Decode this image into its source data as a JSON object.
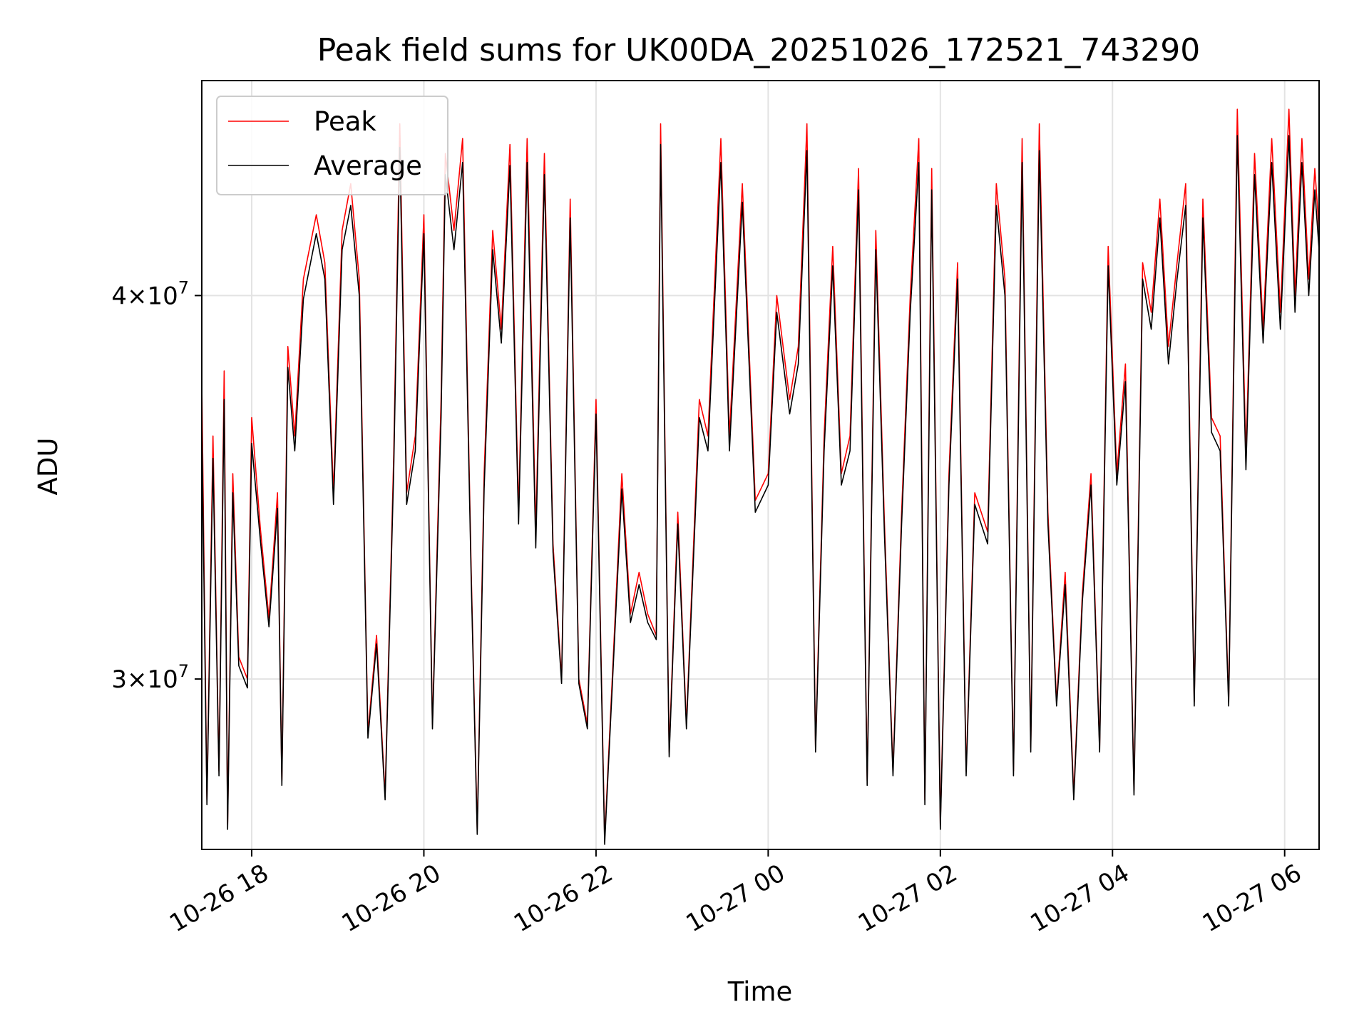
{
  "chart_data": {
    "type": "line",
    "title": "Peak field sums for UK00DA_20251026_172521_743290",
    "xlabel": "Time",
    "ylabel": "ADU",
    "x_range_hours": [
      17.42,
      30.4
    ],
    "ylim": [
      26400000,
      47000000
    ],
    "y_scale": "log",
    "grid": true,
    "legend_position": "top-left",
    "x_ticks": [
      {
        "hour": 18,
        "label": "10-26 18"
      },
      {
        "hour": 20,
        "label": "10-26 20"
      },
      {
        "hour": 22,
        "label": "10-26 22"
      },
      {
        "hour": 24,
        "label": "10-27 00"
      },
      {
        "hour": 26,
        "label": "10-27 02"
      },
      {
        "hour": 28,
        "label": "10-27 04"
      },
      {
        "hour": 30,
        "label": "10-27 06"
      }
    ],
    "y_ticks": [
      {
        "value": 30000000,
        "base": "3",
        "exp": "7"
      },
      {
        "value": 40000000,
        "base": "4",
        "exp": "7"
      }
    ],
    "series": [
      {
        "name": "Peak",
        "color": "#ff0000",
        "points": [
          [
            17.42,
            37500000
          ],
          [
            17.48,
            27400000
          ],
          [
            17.55,
            36000000
          ],
          [
            17.62,
            28000000
          ],
          [
            17.68,
            37800000
          ],
          [
            17.72,
            26900000
          ],
          [
            17.78,
            35000000
          ],
          [
            17.85,
            30500000
          ],
          [
            17.95,
            30000000
          ],
          [
            18.0,
            36500000
          ],
          [
            18.1,
            33600000
          ],
          [
            18.2,
            31400000
          ],
          [
            18.3,
            34500000
          ],
          [
            18.35,
            27800000
          ],
          [
            18.42,
            38500000
          ],
          [
            18.5,
            36000000
          ],
          [
            18.6,
            40500000
          ],
          [
            18.75,
            42500000
          ],
          [
            18.85,
            41000000
          ],
          [
            18.95,
            34500000
          ],
          [
            19.05,
            42000000
          ],
          [
            19.15,
            43500000
          ],
          [
            19.25,
            40500000
          ],
          [
            19.35,
            28800000
          ],
          [
            19.45,
            31000000
          ],
          [
            19.55,
            27500000
          ],
          [
            19.65,
            35500000
          ],
          [
            19.72,
            45500000
          ],
          [
            19.8,
            34500000
          ],
          [
            19.9,
            36000000
          ],
          [
            20.0,
            42500000
          ],
          [
            20.1,
            29000000
          ],
          [
            20.2,
            37000000
          ],
          [
            20.25,
            44500000
          ],
          [
            20.35,
            42000000
          ],
          [
            20.45,
            45000000
          ],
          [
            20.55,
            32500000
          ],
          [
            20.62,
            26800000
          ],
          [
            20.7,
            35000000
          ],
          [
            20.8,
            42000000
          ],
          [
            20.9,
            39000000
          ],
          [
            21.0,
            44800000
          ],
          [
            21.1,
            34000000
          ],
          [
            21.2,
            45000000
          ],
          [
            21.3,
            33500000
          ],
          [
            21.4,
            44500000
          ],
          [
            21.5,
            33200000
          ],
          [
            21.6,
            30000000
          ],
          [
            21.7,
            43000000
          ],
          [
            21.8,
            30000000
          ],
          [
            21.9,
            29000000
          ],
          [
            22.0,
            37000000
          ],
          [
            22.1,
            26600000
          ],
          [
            22.2,
            30500000
          ],
          [
            22.3,
            35000000
          ],
          [
            22.4,
            31500000
          ],
          [
            22.5,
            32500000
          ],
          [
            22.6,
            31500000
          ],
          [
            22.7,
            31000000
          ],
          [
            22.75,
            45500000
          ],
          [
            22.85,
            28400000
          ],
          [
            22.95,
            34000000
          ],
          [
            23.05,
            29000000
          ],
          [
            23.2,
            37000000
          ],
          [
            23.3,
            36000000
          ],
          [
            23.45,
            45000000
          ],
          [
            23.55,
            36000000
          ],
          [
            23.7,
            43500000
          ],
          [
            23.85,
            34300000
          ],
          [
            24.0,
            35000000
          ],
          [
            24.1,
            40000000
          ],
          [
            24.25,
            37000000
          ],
          [
            24.35,
            38500000
          ],
          [
            24.45,
            45500000
          ],
          [
            24.55,
            28500000
          ],
          [
            24.65,
            36000000
          ],
          [
            24.75,
            41500000
          ],
          [
            24.85,
            35000000
          ],
          [
            24.95,
            36000000
          ],
          [
            25.05,
            44000000
          ],
          [
            25.15,
            27800000
          ],
          [
            25.25,
            42000000
          ],
          [
            25.35,
            33800000
          ],
          [
            25.45,
            28000000
          ],
          [
            25.55,
            34000000
          ],
          [
            25.65,
            40000000
          ],
          [
            25.75,
            45000000
          ],
          [
            25.82,
            27400000
          ],
          [
            25.9,
            44000000
          ],
          [
            26.0,
            26900000
          ],
          [
            26.1,
            35000000
          ],
          [
            26.2,
            41000000
          ],
          [
            26.3,
            28000000
          ],
          [
            26.4,
            34500000
          ],
          [
            26.55,
            33500000
          ],
          [
            26.65,
            43500000
          ],
          [
            26.75,
            40500000
          ],
          [
            26.85,
            28000000
          ],
          [
            26.95,
            45000000
          ],
          [
            27.05,
            28500000
          ],
          [
            27.15,
            45500000
          ],
          [
            27.25,
            34000000
          ],
          [
            27.35,
            29500000
          ],
          [
            27.45,
            32500000
          ],
          [
            27.55,
            27500000
          ],
          [
            27.65,
            32000000
          ],
          [
            27.75,
            35000000
          ],
          [
            27.85,
            28500000
          ],
          [
            27.95,
            41500000
          ],
          [
            28.05,
            35000000
          ],
          [
            28.15,
            38000000
          ],
          [
            28.25,
            27600000
          ],
          [
            28.35,
            41000000
          ],
          [
            28.45,
            39500000
          ],
          [
            28.55,
            43000000
          ],
          [
            28.65,
            38500000
          ],
          [
            28.75,
            41000000
          ],
          [
            28.85,
            43500000
          ],
          [
            28.95,
            29500000
          ],
          [
            29.05,
            43000000
          ],
          [
            29.15,
            36500000
          ],
          [
            29.25,
            36000000
          ],
          [
            29.35,
            29500000
          ],
          [
            29.45,
            46000000
          ],
          [
            29.55,
            35500000
          ],
          [
            29.65,
            44500000
          ],
          [
            29.75,
            39000000
          ],
          [
            29.85,
            45000000
          ],
          [
            29.95,
            39500000
          ],
          [
            30.05,
            46000000
          ],
          [
            30.12,
            40000000
          ],
          [
            30.2,
            45000000
          ],
          [
            30.28,
            40500000
          ],
          [
            30.35,
            44000000
          ],
          [
            30.4,
            42000000
          ]
        ]
      },
      {
        "name": "Average",
        "color": "#000000",
        "points": [
          [
            17.42,
            36500000
          ],
          [
            17.48,
            27300000
          ],
          [
            17.55,
            35400000
          ],
          [
            17.62,
            27900000
          ],
          [
            17.68,
            37000000
          ],
          [
            17.72,
            26800000
          ],
          [
            17.78,
            34500000
          ],
          [
            17.85,
            30300000
          ],
          [
            17.95,
            29800000
          ],
          [
            18.0,
            35800000
          ],
          [
            18.1,
            33300000
          ],
          [
            18.2,
            31200000
          ],
          [
            18.3,
            34100000
          ],
          [
            18.35,
            27700000
          ],
          [
            18.42,
            37900000
          ],
          [
            18.5,
            35600000
          ],
          [
            18.6,
            39900000
          ],
          [
            18.75,
            41900000
          ],
          [
            18.85,
            40500000
          ],
          [
            18.95,
            34200000
          ],
          [
            19.05,
            41400000
          ],
          [
            19.15,
            42800000
          ],
          [
            19.25,
            40000000
          ],
          [
            19.35,
            28700000
          ],
          [
            19.45,
            30800000
          ],
          [
            19.55,
            27400000
          ],
          [
            19.65,
            35100000
          ],
          [
            19.72,
            44700000
          ],
          [
            19.8,
            34200000
          ],
          [
            19.9,
            35600000
          ],
          [
            20.0,
            41900000
          ],
          [
            20.1,
            28900000
          ],
          [
            20.2,
            36500000
          ],
          [
            20.25,
            43800000
          ],
          [
            20.35,
            41400000
          ],
          [
            20.45,
            44200000
          ],
          [
            20.55,
            32300000
          ],
          [
            20.62,
            26700000
          ],
          [
            20.7,
            34600000
          ],
          [
            20.8,
            41400000
          ],
          [
            20.9,
            38600000
          ],
          [
            21.0,
            44100000
          ],
          [
            21.1,
            33700000
          ],
          [
            21.2,
            44200000
          ],
          [
            21.3,
            33100000
          ],
          [
            21.4,
            43800000
          ],
          [
            21.5,
            33000000
          ],
          [
            21.6,
            29900000
          ],
          [
            21.7,
            42400000
          ],
          [
            21.8,
            29900000
          ],
          [
            21.9,
            28900000
          ],
          [
            22.0,
            36600000
          ],
          [
            22.1,
            26500000
          ],
          [
            22.2,
            30300000
          ],
          [
            22.3,
            34600000
          ],
          [
            22.4,
            31300000
          ],
          [
            22.5,
            32200000
          ],
          [
            22.6,
            31300000
          ],
          [
            22.7,
            30900000
          ],
          [
            22.75,
            44800000
          ],
          [
            22.85,
            28300000
          ],
          [
            22.95,
            33700000
          ],
          [
            23.05,
            28900000
          ],
          [
            23.2,
            36500000
          ],
          [
            23.3,
            35600000
          ],
          [
            23.45,
            44200000
          ],
          [
            23.55,
            35600000
          ],
          [
            23.7,
            42900000
          ],
          [
            23.85,
            34000000
          ],
          [
            24.0,
            34700000
          ],
          [
            24.1,
            39500000
          ],
          [
            24.25,
            36600000
          ],
          [
            24.35,
            38000000
          ],
          [
            24.45,
            44600000
          ],
          [
            24.55,
            28400000
          ],
          [
            24.65,
            35600000
          ],
          [
            24.75,
            40900000
          ],
          [
            24.85,
            34700000
          ],
          [
            24.95,
            35600000
          ],
          [
            25.05,
            43300000
          ],
          [
            25.15,
            27700000
          ],
          [
            25.25,
            41400000
          ],
          [
            25.35,
            33500000
          ],
          [
            25.45,
            27900000
          ],
          [
            25.55,
            33700000
          ],
          [
            25.65,
            39500000
          ],
          [
            25.75,
            44200000
          ],
          [
            25.82,
            27300000
          ],
          [
            25.9,
            43300000
          ],
          [
            26.0,
            26800000
          ],
          [
            26.1,
            34700000
          ],
          [
            26.2,
            40500000
          ],
          [
            26.3,
            27900000
          ],
          [
            26.4,
            34200000
          ],
          [
            26.55,
            33200000
          ],
          [
            26.65,
            42800000
          ],
          [
            26.75,
            40000000
          ],
          [
            26.85,
            27900000
          ],
          [
            26.95,
            44200000
          ],
          [
            27.05,
            28400000
          ],
          [
            27.15,
            44600000
          ],
          [
            27.25,
            33700000
          ],
          [
            27.35,
            29400000
          ],
          [
            27.45,
            32200000
          ],
          [
            27.55,
            27400000
          ],
          [
            27.65,
            31800000
          ],
          [
            27.75,
            34700000
          ],
          [
            27.85,
            28400000
          ],
          [
            27.95,
            40900000
          ],
          [
            28.05,
            34700000
          ],
          [
            28.15,
            37500000
          ],
          [
            28.25,
            27500000
          ],
          [
            28.35,
            40500000
          ],
          [
            28.45,
            39000000
          ],
          [
            28.55,
            42400000
          ],
          [
            28.65,
            38000000
          ],
          [
            28.75,
            40500000
          ],
          [
            28.85,
            42800000
          ],
          [
            28.95,
            29400000
          ],
          [
            29.05,
            42400000
          ],
          [
            29.15,
            36100000
          ],
          [
            29.25,
            35600000
          ],
          [
            29.35,
            29400000
          ],
          [
            29.45,
            45100000
          ],
          [
            29.55,
            35100000
          ],
          [
            29.65,
            43800000
          ],
          [
            29.75,
            38600000
          ],
          [
            29.85,
            44200000
          ],
          [
            29.95,
            39000000
          ],
          [
            30.05,
            45100000
          ],
          [
            30.12,
            39500000
          ],
          [
            30.2,
            44200000
          ],
          [
            30.28,
            40000000
          ],
          [
            30.35,
            43300000
          ],
          [
            30.4,
            41400000
          ]
        ]
      }
    ]
  }
}
